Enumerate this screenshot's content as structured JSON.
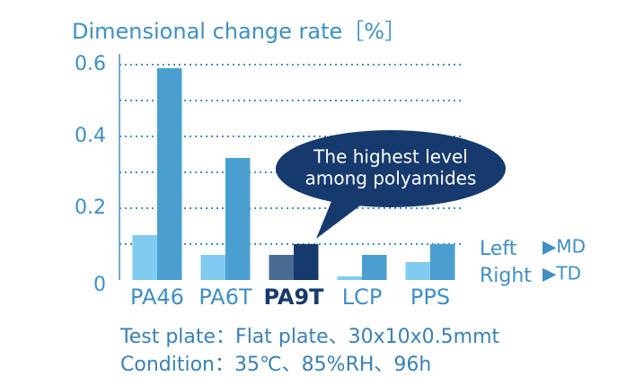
{
  "chart_data": {
    "type": "bar",
    "y_axis_label": "Dimensional change rate［%］",
    "categories": [
      "PA46",
      "PA6T",
      "PA9T",
      "LCP",
      "PPS"
    ],
    "highlight_index": 2,
    "series": [
      {
        "name": "▶MD",
        "position": "Left",
        "color": "#80ccf0",
        "highlight_color": "#4a6b92",
        "values": [
          0.125,
          0.07,
          0.07,
          0.01,
          0.05
        ]
      },
      {
        "name": "▶TD",
        "position": "Right",
        "color": "#4a9fd0",
        "highlight_color": "#173a6e",
        "values": [
          0.59,
          0.34,
          0.1,
          0.07,
          0.1
        ]
      }
    ],
    "ylim": [
      0,
      0.6
    ],
    "yticks": [
      0,
      0.2,
      0.4,
      0.6
    ],
    "ygrid": [
      0.1,
      0.2,
      0.3,
      0.4,
      0.5,
      0.6
    ],
    "grid": true,
    "annotation": [
      "The highest level",
      "among polyamides"
    ],
    "notes": [
      "Test plate：Flat plate、30x10x0.5mmt",
      "Condition：35℃、85%RH、96h"
    ]
  }
}
